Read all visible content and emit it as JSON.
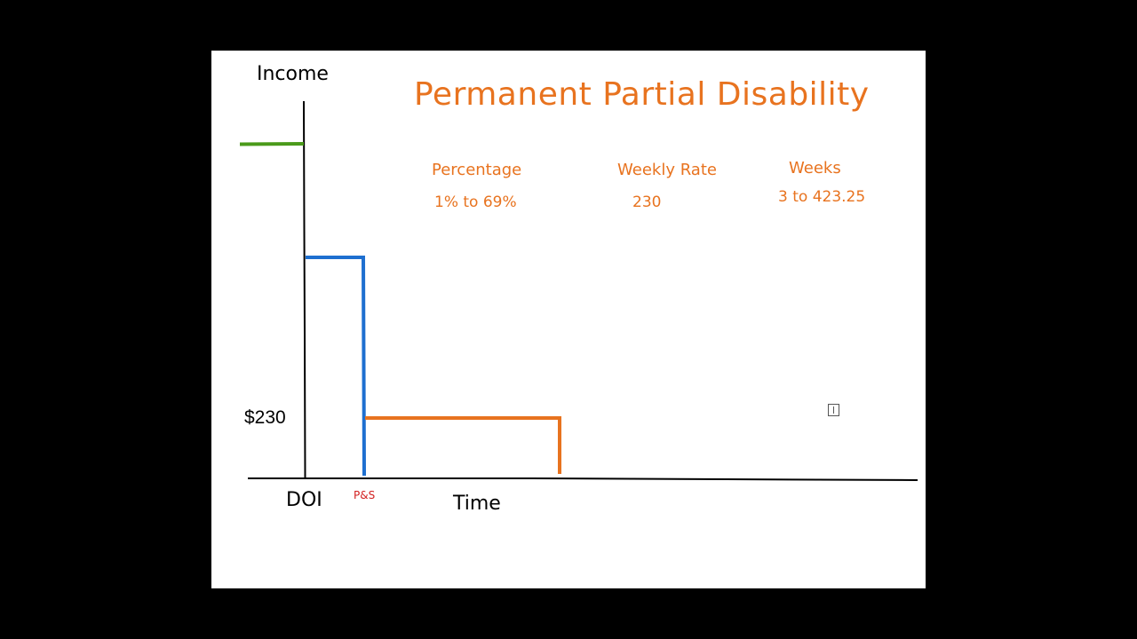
{
  "colors": {
    "orange": "#E8731F",
    "green": "#4A9A1A",
    "blue": "#1E6FD0",
    "red": "#D21F1F",
    "black": "#000000",
    "background": "#000000",
    "canvas": "#FFFFFF"
  },
  "diagram": {
    "title": "Permanent Partial Disability",
    "y_axis_label": "Income",
    "x_axis_label": "Time",
    "origin_label": "DOI",
    "ps_label": "P&S",
    "rate_label": "$230"
  },
  "table": {
    "columns": [
      {
        "header": "Percentage",
        "value": "1% to 69%"
      },
      {
        "header": "Weekly Rate",
        "value": "230"
      },
      {
        "header": "Weeks",
        "value": "3 to 423.25"
      }
    ]
  },
  "icons": {
    "cursor": "ibeam-cursor-icon"
  }
}
